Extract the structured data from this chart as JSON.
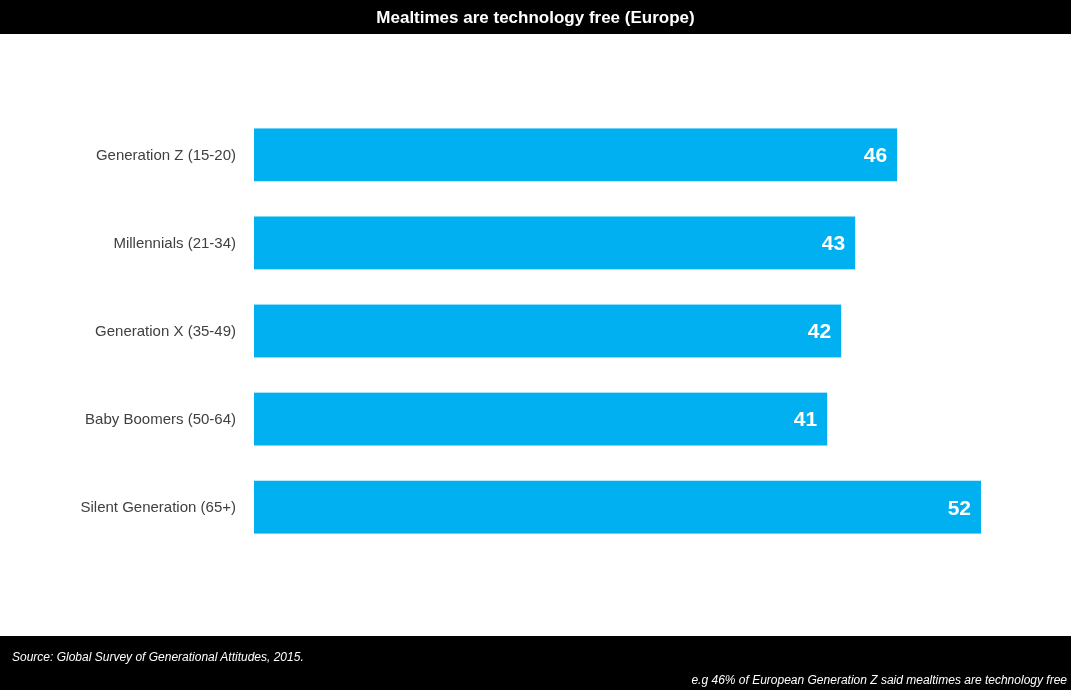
{
  "chart_data": {
    "type": "bar",
    "orientation": "horizontal",
    "title": "Mealtimes are technology free (Europe)",
    "categories": [
      "Generation Z (15-20)",
      "Millennials (21-34)",
      "Generation X (35-49)",
      "Baby Boomers (50-64)",
      "Silent Generation (65+)"
    ],
    "values": [
      46,
      43,
      42,
      41,
      52
    ],
    "color": "#00b0f0",
    "data_labels": true,
    "annotations": [
      "Source: Global Survey of Generational Attitudes, 2015.",
      "e.g  46% of European Generation Z said mealtimes are technology free"
    ]
  }
}
